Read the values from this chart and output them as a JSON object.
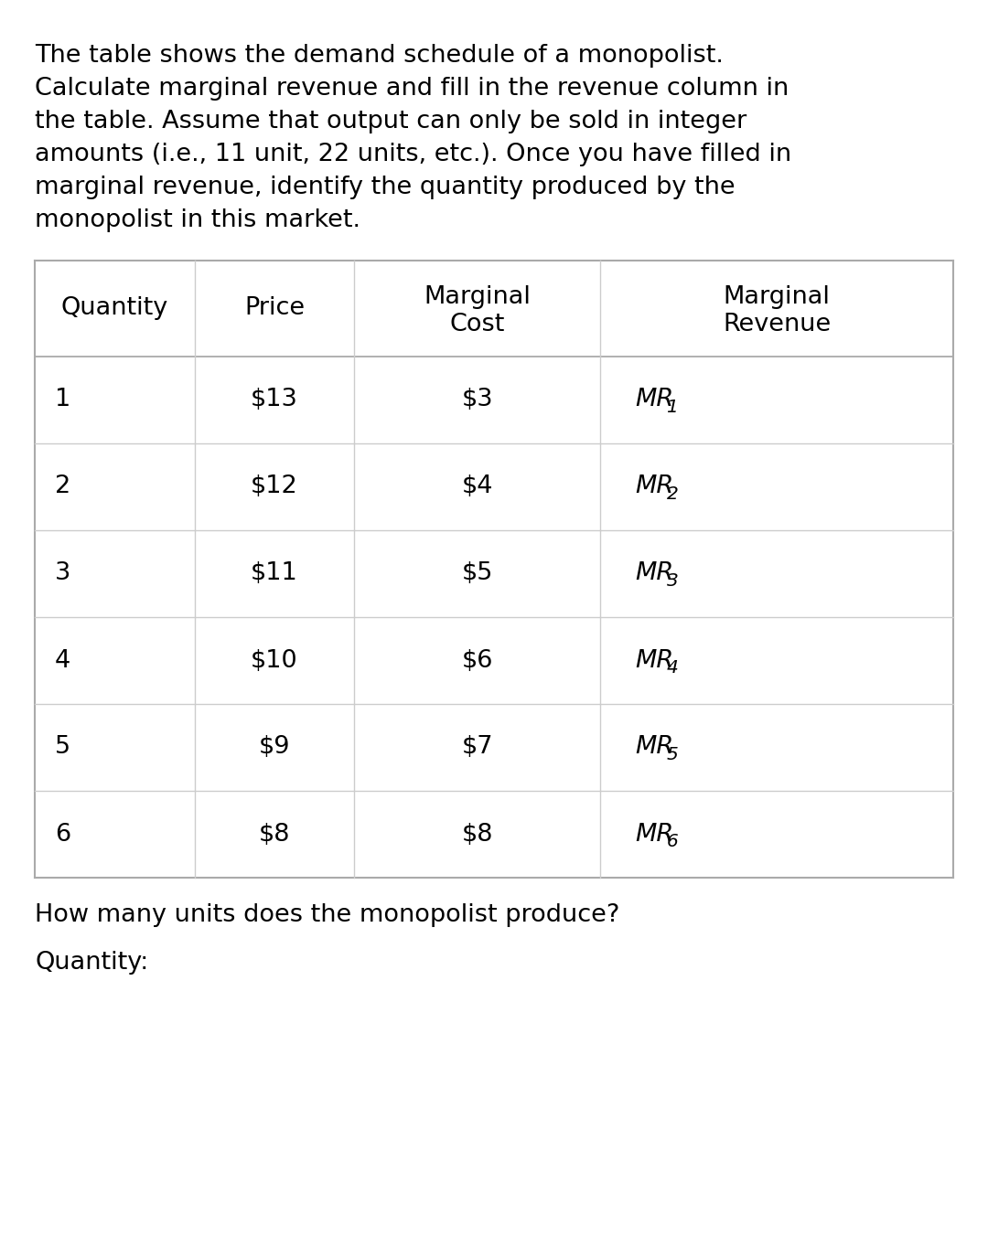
{
  "description_lines": [
    "The table shows the demand schedule of a monopolist.",
    "Calculate marginal revenue and fill in the revenue column in",
    "the table. Assume that output can only be sold in integer",
    "amounts (i.e., 11 unit, 22 units, etc.). Once you have filled in",
    "marginal revenue, identify the quantity produced by the",
    "monopolist in this market."
  ],
  "col_headers_line1": [
    "Quantity",
    "Price",
    "Marginal",
    "Marginal"
  ],
  "col_headers_line2": [
    "",
    "",
    "Cost",
    "Revenue"
  ],
  "rows": [
    [
      "1",
      "$13",
      "$3",
      "MR",
      "1"
    ],
    [
      "2",
      "$12",
      "$4",
      "MR",
      "2"
    ],
    [
      "3",
      "$11",
      "$5",
      "MR",
      "3"
    ],
    [
      "4",
      "$10",
      "$6",
      "MR",
      "4"
    ],
    [
      "5",
      "$9",
      "$7",
      "MR",
      "5"
    ],
    [
      "6",
      "$8",
      "$8",
      "MR",
      "6"
    ]
  ],
  "footer_line1": "How many units does the monopolist produce?",
  "footer_line2": "Quantity:",
  "bg_color": "#ffffff",
  "text_color": "#000000",
  "line_color_outer": "#aaaaaa",
  "line_color_inner": "#cccccc",
  "desc_fontsize": 19.5,
  "header_fontsize": 19.5,
  "cell_fontsize": 19.5,
  "footer_fontsize": 19.5,
  "mr_fontsize": 19.5,
  "mr_sub_fontsize": 14.5
}
